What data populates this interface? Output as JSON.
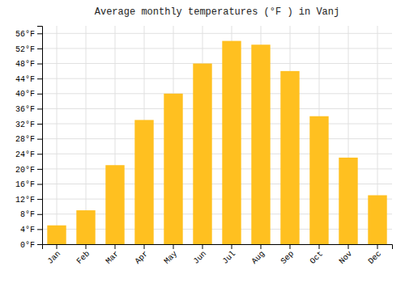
{
  "chart_data": {
    "type": "bar",
    "title": "Average monthly temperatures (°F ) in Vanj",
    "categories": [
      "Jan",
      "Feb",
      "Mar",
      "Apr",
      "May",
      "Jun",
      "Jul",
      "Aug",
      "Sep",
      "Oct",
      "Nov",
      "Dec"
    ],
    "values": [
      5,
      9,
      21,
      33,
      40,
      48,
      54,
      53,
      46,
      34,
      23,
      13
    ],
    "color": "#FFC020",
    "ylim": [
      0,
      58
    ],
    "yticks": [
      {
        "value": 0,
        "label": "0°F"
      },
      {
        "value": 4,
        "label": "4°F"
      },
      {
        "value": 8,
        "label": "8°F"
      },
      {
        "value": 12,
        "label": "12°F"
      },
      {
        "value": 16,
        "label": "16°F"
      },
      {
        "value": 20,
        "label": "20°F"
      },
      {
        "value": 24,
        "label": "24°F"
      },
      {
        "value": 28,
        "label": "28°F"
      },
      {
        "value": 32,
        "label": "32°F"
      },
      {
        "value": 36,
        "label": "36°F"
      },
      {
        "value": 40,
        "label": "40°F"
      },
      {
        "value": 44,
        "label": "44°F"
      },
      {
        "value": 48,
        "label": "48°F"
      },
      {
        "value": 52,
        "label": "52°F"
      },
      {
        "value": 56,
        "label": "56°F"
      }
    ],
    "grid": true
  }
}
